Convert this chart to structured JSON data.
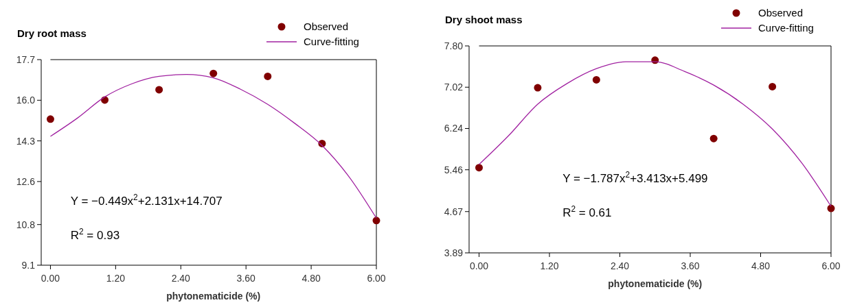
{
  "chart_data": [
    {
      "type": "scatter",
      "title": "Dry root mass",
      "xlabel": "phytonematicide (%)",
      "xlim": [
        -0.17,
        6
      ],
      "ylim": [
        9.1,
        17.7
      ],
      "legend": "top right",
      "grid": false,
      "xticks": [
        {
          "value": 0,
          "label": "0.00"
        },
        {
          "value": 1.2,
          "label": "1.20"
        },
        {
          "value": 2.4,
          "label": "2.40"
        },
        {
          "value": 3.6,
          "label": "3.60"
        },
        {
          "value": 4.8,
          "label": "4.80"
        },
        {
          "value": 6,
          "label": "6.00"
        }
      ],
      "yticks": [
        9.1,
        10.8,
        12.6,
        14.3,
        {
          "value": 16,
          "label": "16.0"
        },
        17.7
      ],
      "series": [
        {
          "name": "Observed",
          "marker": "circle",
          "color": "#800000",
          "x": [
            0,
            1,
            2,
            3,
            4,
            5,
            6
          ],
          "values": [
            15.21,
            16.01,
            16.44,
            17.12,
            17.0,
            14.19,
            10.97
          ]
        },
        {
          "name": "Curve-fitting",
          "type": "line",
          "color": "#a020a0",
          "x": [
            0,
            0.5,
            1,
            1.5,
            2,
            2.5,
            3,
            3.5,
            4,
            4.5,
            5,
            5.5,
            6
          ],
          "values": [
            14.49,
            15.26,
            16.14,
            16.69,
            17.0,
            17.08,
            16.94,
            16.46,
            15.83,
            15.03,
            14.11,
            12.79,
            11.07
          ]
        }
      ],
      "annotations": [
        "Y = −0.449x$^{2}$+2.131x+14.707",
        "R$^{2}$ = 0.93"
      ]
    },
    {
      "type": "scatter",
      "title": "Dry shoot mass",
      "xlabel": "phytonematicide (%)",
      "xlim": [
        -0.17,
        6
      ],
      "ylim": [
        3.89,
        7.8
      ],
      "legend": "top right",
      "grid": false,
      "xticks": [
        {
          "value": 0,
          "label": "0.00"
        },
        {
          "value": 1.2,
          "label": "1.20"
        },
        {
          "value": 2.4,
          "label": "2.40"
        },
        {
          "value": 3.6,
          "label": "3.60"
        },
        {
          "value": 4.8,
          "label": "4.80"
        },
        {
          "value": 6,
          "label": "6.00"
        }
      ],
      "yticks": [
        3.89,
        4.67,
        5.46,
        6.24,
        7.02,
        {
          "value": 7.8,
          "label": "7.80"
        }
      ],
      "series": [
        {
          "name": "Observed",
          "marker": "circle",
          "color": "#800000",
          "x": [
            0,
            1,
            2,
            3,
            4,
            5,
            6
          ],
          "values": [
            5.5,
            7.01,
            7.16,
            7.53,
            6.05,
            7.03,
            4.73
          ]
        },
        {
          "name": "Curve-fitting",
          "type": "line",
          "color": "#a020a0",
          "x": [
            0,
            0.5,
            1,
            1.5,
            2,
            2.5,
            3,
            3.5,
            4,
            4.5,
            5,
            5.5,
            6
          ],
          "values": [
            5.56,
            6.1,
            6.7,
            7.09,
            7.37,
            7.5,
            7.5,
            7.32,
            7.06,
            6.7,
            6.23,
            5.59,
            4.77
          ]
        }
      ],
      "annotations": [
        "Y = −1.787x$^{2}$+3.413x+5.499",
        "R$^{2}$ = 0.61"
      ]
    }
  ]
}
